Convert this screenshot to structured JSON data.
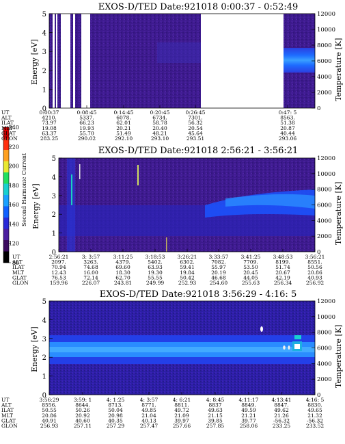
{
  "colorbar": {
    "label": "Second Harmonic Current",
    "ticks": [
      "80",
      "120",
      "140",
      "160",
      "180",
      "200",
      "220",
      "240"
    ],
    "colors": [
      "#000000",
      "#3b0a5e",
      "#4b1fa0",
      "#2a2ad8",
      "#1060ff",
      "#1aa0ff",
      "#18d0d0",
      "#20e060",
      "#e8e830",
      "#ffa020",
      "#ff3010",
      "#d80000"
    ]
  },
  "ephemeris_row_labels": [
    "UT",
    "ALT",
    "ILAT",
    "MLT",
    "GLAT",
    "GLON"
  ],
  "chart_data": [
    {
      "type": "heatmap",
      "title": "EXOS-D/TED   Date:921018   0:00:37 - 0:52:49",
      "ylabel": "Energy [eV]",
      "y2label": "Temperature [K]",
      "ylim": [
        0,
        5
      ],
      "y2lim": [
        0,
        12000
      ],
      "yticks": [
        "0",
        "1",
        "2",
        "3",
        "4",
        "5"
      ],
      "y2ticks": [
        "0",
        "2000",
        "4000",
        "6000",
        "8000",
        "10000",
        "12000"
      ],
      "ephemeris": [
        [
          "0:00:37",
          "4210.",
          "73.97",
          "19.08",
          "63.37",
          "283.25"
        ],
        [
          "0:08:45",
          "5337.",
          "66.23",
          "19.93",
          "55.70",
          "290.02"
        ],
        [
          "0:14:45",
          "6078.",
          "62.01",
          "20.21",
          "51.49",
          "292.10"
        ],
        [
          "0:20:45",
          "6734.",
          "58.78",
          "20.40",
          "48.21",
          "293.10"
        ],
        [
          "0:26:45",
          "7301.",
          "56.32",
          "20.54",
          "45.64",
          "293.51"
        ],
        [
          "0:47: 5",
          "8563.",
          "51.38",
          "20.87",
          "40.44",
          "293.06"
        ]
      ]
    },
    {
      "type": "heatmap",
      "title": "EXOS-D/TED   Date:921018   2:56:21 - 3:56:21",
      "ylabel": "Energy [eV]",
      "y2label": "Temperature [K]",
      "ylim": [
        0,
        5
      ],
      "y2lim": [
        0,
        12000
      ],
      "yticks": [
        "0",
        "1",
        "2",
        "3",
        "4",
        "5"
      ],
      "y2ticks": [
        "0",
        "2000",
        "4000",
        "6000",
        "8000",
        "10000",
        "12000"
      ],
      "ephemeris": [
        [
          "2:56:21",
          "2097.",
          "70.94",
          "12.43",
          "76.53",
          "159.96"
        ],
        [
          "3: 3:57",
          "3263.",
          "74.68",
          "16.00",
          "72.14",
          "226.07"
        ],
        [
          "3:11:25",
          "4379.",
          "69.60",
          "18.30",
          "62.70",
          "243.81"
        ],
        [
          "3:18:53",
          "5402.",
          "63.93",
          "19.30",
          "55.55",
          "249.99"
        ],
        [
          "3:26:21",
          "6302.",
          "59.41",
          "19.84",
          "50.42",
          "252.93"
        ],
        [
          "3:33:57",
          "7082.",
          "55.97",
          "20.19",
          "46.68",
          "254.60"
        ],
        [
          "3:41:25",
          "7709.",
          "53.50",
          "20.45",
          "44.05",
          "255.63"
        ],
        [
          "3:48:53",
          "8199.",
          "51.74",
          "20.67",
          "42.19",
          "256.34"
        ],
        [
          "3:56:21",
          "8551.",
          "50.56",
          "20.86",
          "40.93",
          "256.92"
        ]
      ]
    },
    {
      "type": "heatmap",
      "title": "EXOS-D/TED   Date:921018   3:56:29 - 4:16: 5",
      "ylabel": "Energy [eV]",
      "y2label": "Temperature [K]",
      "ylim": [
        0,
        5
      ],
      "y2lim": [
        0,
        12000
      ],
      "yticks": [
        "0",
        "1",
        "2",
        "3",
        "4",
        "5"
      ],
      "y2ticks": [
        "0",
        "2000",
        "4000",
        "6000",
        "8000",
        "10000",
        "12000"
      ],
      "ephemeris": [
        [
          "3:56:29",
          "8556.",
          "50.55",
          "20.86",
          "40.91",
          "256.93"
        ],
        [
          "3:59: 1",
          "8644.",
          "50.26",
          "20.92",
          "40.60",
          "257.11"
        ],
        [
          "4: 1:25",
          "8713.",
          "50.04",
          "20.98",
          "40.35",
          "257.29"
        ],
        [
          "4: 3:57",
          "8771.",
          "49.85",
          "21.04",
          "40.13",
          "257.47"
        ],
        [
          "4: 6:21",
          "8811.",
          "49.72",
          "21.09",
          "39.97",
          "257.66"
        ],
        [
          "4: 8:45",
          "8837",
          "49.63",
          "21.15",
          "39.85",
          "257.85"
        ],
        [
          "4:11:17",
          "8849.",
          "49.59",
          "21.21",
          "39.77",
          "258.06"
        ],
        [
          "4:13:41",
          "8847.",
          "49.62",
          "21.26",
          "-56.32",
          "233.25"
        ],
        [
          "4:16: 5",
          "8830.",
          "49.65",
          "21.32",
          "-56.32",
          "233.52"
        ]
      ]
    }
  ]
}
